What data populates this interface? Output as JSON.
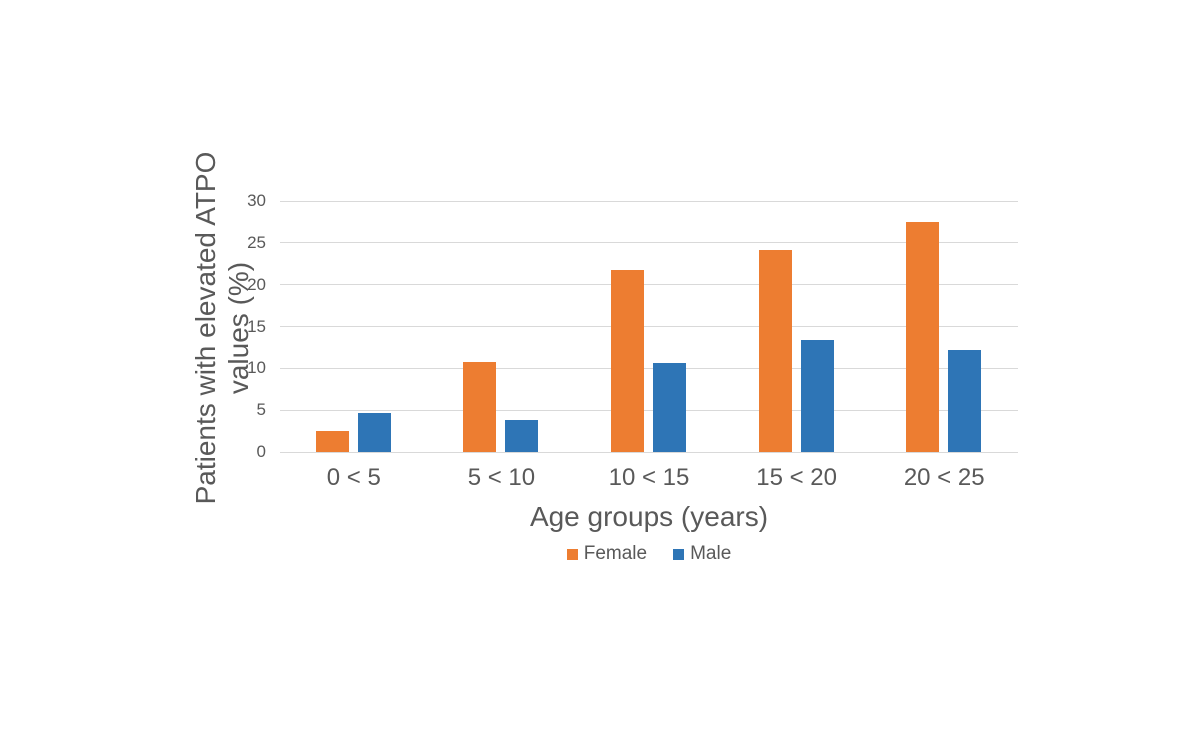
{
  "chart_data": {
    "type": "bar",
    "title": "",
    "categories": [
      "0 < 5",
      "5 < 10",
      "10 < 15",
      "15 < 20",
      "20 < 25"
    ],
    "series": [
      {
        "name": "Female",
        "color": "#ED7D31",
        "values": [
          2.5,
          10.8,
          21.8,
          24.1,
          27.5
        ]
      },
      {
        "name": "Male",
        "color": "#2E75B6",
        "values": [
          4.7,
          3.8,
          10.6,
          13.4,
          12.2
        ]
      }
    ],
    "xlabel": "Age groups (years)",
    "ylabel_line1": "Patients with elevated ATPO",
    "ylabel_line2": "values (%)",
    "ylim": [
      0,
      30
    ],
    "yticks": [
      "0",
      "5",
      "10",
      "15",
      "20",
      "25",
      "30"
    ],
    "grid": true,
    "legend_position": "bottom",
    "colors": {
      "grid": "#d9d9d9",
      "text": "#595959",
      "background": "#ffffff"
    }
  }
}
